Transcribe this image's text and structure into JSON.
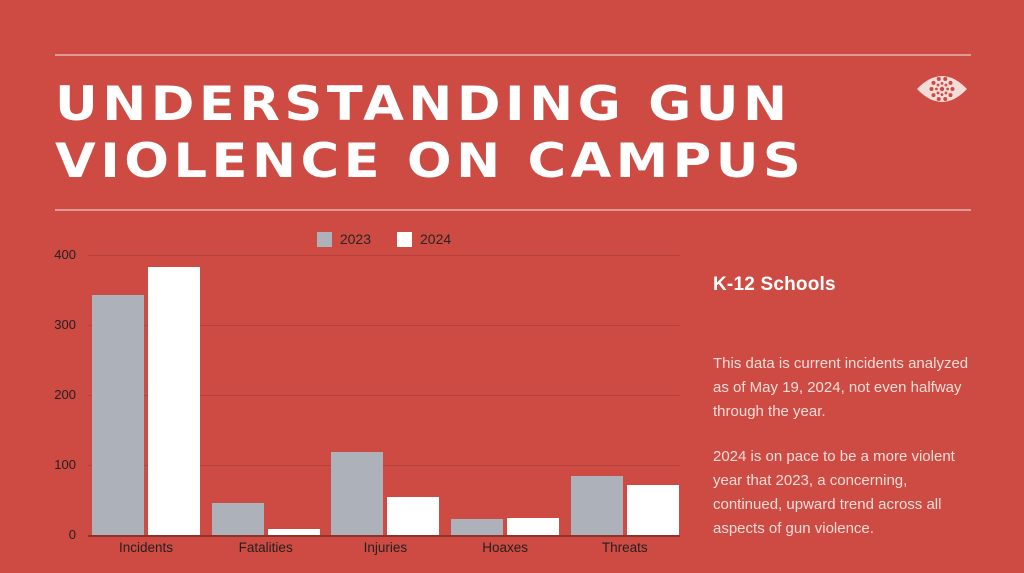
{
  "colors": {
    "background": "#cd4b42",
    "title_text": "#ffffff",
    "divider": "#ecddde",
    "bar_2023": "#adb2ba",
    "bar_2024": "#ffffff",
    "axis_text": "#241f1f",
    "side_text": "#f4ddda",
    "eye_icon": "#f4dcd9"
  },
  "header": {
    "title": "UNDERSTANDING GUN\nVIOLENCE ON CAMPUS",
    "logo_icon": "eye-icon"
  },
  "chart_data": {
    "type": "bar",
    "title": "",
    "categories": [
      "Incidents",
      "Fatalities",
      "Injuries",
      "Hoaxes",
      "Threats"
    ],
    "series": [
      {
        "name": "2023",
        "color": "#adb2ba",
        "values": [
          343,
          46,
          118,
          23,
          84
        ]
      },
      {
        "name": "2024",
        "color": "#ffffff",
        "values": [
          383,
          9,
          54,
          25,
          72
        ]
      }
    ],
    "xlabel": "",
    "ylabel": "",
    "ylim": [
      0,
      400
    ],
    "yticks": [
      0,
      100,
      200,
      300,
      400
    ],
    "grid": true,
    "legend_position": "top-center"
  },
  "side_panel": {
    "heading": "K-12 Schools",
    "paragraph1": "This data is current incidents analyzed\nas of May 19, 2024, not even halfway\nthrough the year.",
    "paragraph2": "2024 is on pace to be a more violent\nyear that 2023, a concerning,\ncontinued, upward trend across all\naspects of gun violence."
  }
}
